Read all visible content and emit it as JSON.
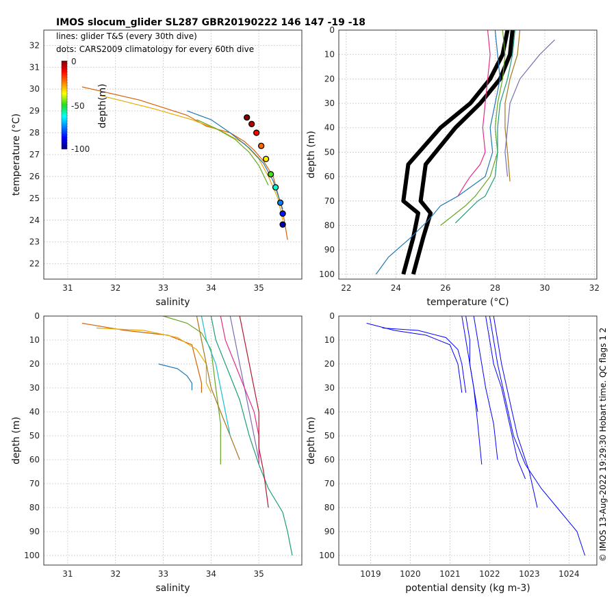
{
  "figure": {
    "title": "IMOS slocum_glider SL287 GBR20190222 146  147  -19  -18",
    "legend_lines": "lines: glider T&S (every 30th dive)",
    "legend_dots": "dots: CARS2009 climatology for every 60th dive",
    "footer": "© IMOS 13-Aug-2022 19:29:30 Hobart time. QC flags 1  2",
    "colors": {
      "density": "#0000ff",
      "climatology": "#000000",
      "frame": "#333333"
    }
  },
  "colorbar": {
    "label": "depth(m)",
    "ticks": [
      "0",
      "-50",
      "-100"
    ],
    "range": [
      -100,
      0
    ]
  },
  "chart_data": [
    {
      "id": "ts",
      "type": "scatter",
      "title": "",
      "xlabel": "salinity",
      "ylabel": "temperature (°C)",
      "xlim": [
        30.5,
        35.9
      ],
      "ylim": [
        21.3,
        32.7
      ],
      "xticks": [
        31,
        32,
        33,
        34,
        35
      ],
      "yticks": [
        22,
        23,
        24,
        25,
        26,
        27,
        28,
        29,
        30,
        31,
        32
      ],
      "grid": true,
      "series": [
        {
          "name": "glider T&S",
          "x": [
            31.3,
            32.5,
            33.5,
            33.9,
            34.4,
            34.7,
            34.9,
            35.1,
            35.3,
            35.4,
            35.5,
            35.6
          ],
          "y": [
            30.1,
            29.5,
            28.8,
            28.3,
            28.0,
            27.6,
            27.2,
            26.7,
            26.0,
            25.2,
            24.4,
            23.1
          ]
        },
        {
          "name": "glider T&S",
          "x": [
            31.7,
            32.8,
            33.6,
            34.2,
            34.7,
            35.0,
            35.2,
            35.4,
            35.5
          ],
          "y": [
            29.7,
            29.1,
            28.6,
            28.1,
            27.5,
            26.8,
            26.0,
            25.0,
            24.0
          ]
        },
        {
          "name": "glider T&S",
          "x": [
            33.5,
            34.0,
            34.4,
            34.8,
            35.1,
            35.3,
            35.5
          ],
          "y": [
            29.0,
            28.6,
            28.0,
            27.3,
            26.6,
            25.8,
            24.5
          ]
        },
        {
          "name": "glider T&S",
          "x": [
            33.7,
            34.1,
            34.5,
            34.8,
            35.0,
            35.2
          ],
          "y": [
            28.6,
            28.2,
            27.7,
            27.1,
            26.5,
            25.6
          ]
        },
        {
          "name": "CARS2009 climatology",
          "x": [
            34.75,
            34.85,
            34.95,
            35.05,
            35.15,
            35.25,
            35.35,
            35.45,
            35.5,
            35.5
          ],
          "y": [
            28.7,
            28.4,
            28.0,
            27.4,
            26.8,
            26.1,
            25.5,
            24.8,
            24.3,
            23.8
          ],
          "depth": [
            0,
            -5,
            -12,
            -22,
            -35,
            -48,
            -60,
            -75,
            -85,
            -95
          ]
        }
      ]
    },
    {
      "id": "temp_depth",
      "type": "line",
      "title": "",
      "xlabel": "temperature (°C)",
      "ylabel": "depth (m)",
      "xlim": [
        21.7,
        32.1
      ],
      "ylim": [
        0,
        102
      ],
      "xticks": [
        22,
        24,
        26,
        28,
        30,
        32
      ],
      "yticks": [
        0,
        10,
        20,
        30,
        40,
        50,
        60,
        70,
        80,
        90,
        100
      ],
      "grid": true,
      "series": [
        {
          "name": "climatology",
          "x": [
            28.5,
            28.3,
            27.8,
            27.0,
            25.8,
            24.5,
            24.3,
            24.9,
            24.7,
            24.3
          ],
          "y": [
            0,
            10,
            20,
            30,
            40,
            55,
            70,
            75,
            85,
            100
          ]
        },
        {
          "name": "climatology",
          "x": [
            28.7,
            28.6,
            28.2,
            27.4,
            26.4,
            25.2,
            25.0,
            25.4,
            25.1,
            24.7
          ],
          "y": [
            0,
            10,
            20,
            30,
            40,
            55,
            70,
            75,
            85,
            100
          ]
        },
        {
          "name": "glider",
          "x": [
            28.0,
            28.1,
            28.2,
            28.0,
            27.8,
            27.9,
            27.6,
            26.5,
            25.8,
            25.3,
            24.6,
            23.7,
            23.2
          ],
          "y": [
            0,
            10,
            20,
            30,
            40,
            50,
            60,
            68,
            72,
            78,
            85,
            93,
            100
          ]
        },
        {
          "name": "glider",
          "x": [
            28.3,
            28.4,
            28.3,
            28.1,
            28.0,
            28.1,
            27.8,
            27.2,
            26.8,
            25.8
          ],
          "y": [
            0,
            10,
            20,
            30,
            40,
            50,
            60,
            68,
            72,
            80
          ]
        },
        {
          "name": "glider",
          "x": [
            29.0,
            28.9,
            28.6,
            28.4,
            28.4,
            28.5,
            28.6
          ],
          "y": [
            0,
            10,
            20,
            30,
            40,
            50,
            62
          ]
        },
        {
          "name": "glider",
          "x": [
            30.4,
            29.8,
            29.0,
            28.6,
            28.5,
            28.4,
            28.5
          ],
          "y": [
            4,
            10,
            20,
            30,
            40,
            50,
            60
          ]
        },
        {
          "name": "glider",
          "x": [
            27.7,
            27.8,
            27.7,
            27.6,
            27.5,
            27.6,
            27.4,
            27.0,
            26.8,
            26.5
          ],
          "y": [
            0,
            10,
            20,
            30,
            40,
            50,
            55,
            60,
            63,
            68
          ]
        },
        {
          "name": "glider",
          "x": [
            28.8,
            28.7,
            28.5,
            28.2,
            28.1,
            28.1,
            28.0,
            27.6,
            27.3,
            26.4
          ],
          "y": [
            0,
            10,
            20,
            30,
            40,
            50,
            60,
            68,
            70,
            79
          ]
        }
      ]
    },
    {
      "id": "sal_depth",
      "type": "line",
      "title": "",
      "xlabel": "salinity",
      "ylabel": "depth (m)",
      "xlim": [
        30.5,
        35.9
      ],
      "ylim": [
        0,
        104
      ],
      "xticks": [
        31,
        32,
        33,
        34,
        35
      ],
      "yticks": [
        0,
        10,
        20,
        30,
        40,
        50,
        60,
        70,
        80,
        90,
        100
      ],
      "grid": true,
      "series": [
        {
          "name": "glider",
          "x": [
            31.3,
            32.2,
            33.1,
            33.6,
            33.7,
            33.8,
            33.8
          ],
          "y": [
            3,
            6,
            8,
            12,
            20,
            28,
            32
          ]
        },
        {
          "name": "glider",
          "x": [
            31.6,
            32.6,
            33.3,
            33.7,
            33.9,
            33.9,
            34.0
          ],
          "y": [
            5,
            6,
            9,
            14,
            20,
            28,
            32
          ]
        },
        {
          "name": "glider",
          "x": [
            32.9,
            33.3,
            33.5,
            33.6,
            33.6
          ],
          "y": [
            20,
            22,
            25,
            28,
            31
          ]
        },
        {
          "name": "glider",
          "x": [
            33.0,
            33.5,
            33.8,
            34.0,
            34.1,
            34.2,
            34.2
          ],
          "y": [
            0,
            3,
            7,
            14,
            30,
            45,
            62
          ]
        },
        {
          "name": "glider",
          "x": [
            33.7,
            33.8,
            33.9,
            34.0,
            34.2,
            34.4,
            34.6
          ],
          "y": [
            0,
            10,
            20,
            30,
            40,
            50,
            60
          ]
        },
        {
          "name": "glider",
          "x": [
            34.4,
            34.5,
            34.6,
            34.7,
            34.8,
            34.9,
            35.0
          ],
          "y": [
            0,
            10,
            20,
            30,
            40,
            50,
            60
          ]
        },
        {
          "name": "glider",
          "x": [
            34.2,
            34.3,
            34.5,
            34.7,
            34.9,
            35.0,
            35.0
          ],
          "y": [
            0,
            10,
            20,
            30,
            40,
            50,
            62
          ]
        },
        {
          "name": "glider",
          "x": [
            34.0,
            34.1,
            34.3,
            34.6,
            34.8,
            35.0,
            35.2,
            35.5,
            35.6,
            35.7
          ],
          "y": [
            0,
            10,
            20,
            35,
            50,
            62,
            72,
            82,
            90,
            100
          ]
        },
        {
          "name": "glider",
          "x": [
            34.6,
            34.7,
            34.8,
            34.9,
            35.0,
            35.0,
            35.1,
            35.2
          ],
          "y": [
            0,
            10,
            20,
            30,
            40,
            55,
            65,
            80
          ]
        },
        {
          "name": "glider",
          "x": [
            33.8,
            33.9,
            34.1,
            34.2,
            34.3,
            34.4
          ],
          "y": [
            0,
            10,
            20,
            30,
            40,
            50
          ]
        }
      ]
    },
    {
      "id": "dens_depth",
      "type": "line",
      "title": "",
      "xlabel": "potential density (kg m-3)",
      "ylabel": "depth (m)",
      "xlim": [
        1018.2,
        1024.7
      ],
      "ylim": [
        0,
        104
      ],
      "xticks": [
        1019,
        1020,
        1021,
        1022,
        1023,
        1024
      ],
      "yticks": [
        0,
        10,
        20,
        30,
        40,
        50,
        60,
        70,
        80,
        90,
        100
      ],
      "grid": true,
      "series": [
        {
          "name": "density",
          "x": [
            1018.9,
            1019.6,
            1020.4,
            1021.0,
            1021.2,
            1021.3
          ],
          "y": [
            3,
            6,
            8,
            12,
            20,
            32
          ]
        },
        {
          "name": "density",
          "x": [
            1019.3,
            1020.2,
            1020.9,
            1021.2,
            1021.3,
            1021.4
          ],
          "y": [
            5,
            6,
            9,
            14,
            20,
            32
          ]
        },
        {
          "name": "density",
          "x": [
            1021.4,
            1021.5,
            1021.5,
            1021.6,
            1021.7,
            1021.8
          ],
          "y": [
            0,
            10,
            20,
            30,
            45,
            62
          ]
        },
        {
          "name": "density",
          "x": [
            1021.6,
            1021.7,
            1021.8,
            1021.9,
            1022.1,
            1022.2
          ],
          "y": [
            0,
            10,
            20,
            30,
            45,
            60
          ]
        },
        {
          "name": "density",
          "x": [
            1022.0,
            1022.1,
            1022.2,
            1022.4,
            1022.6,
            1022.9,
            1023.3,
            1023.8,
            1024.2,
            1024.4
          ],
          "y": [
            0,
            10,
            20,
            35,
            50,
            62,
            72,
            82,
            90,
            100
          ]
        },
        {
          "name": "density",
          "x": [
            1022.1,
            1022.2,
            1022.3,
            1022.5,
            1022.7,
            1023.0,
            1023.2
          ],
          "y": [
            0,
            10,
            20,
            35,
            50,
            65,
            80
          ]
        },
        {
          "name": "density",
          "x": [
            1021.9,
            1022.0,
            1022.1,
            1022.3,
            1022.5,
            1022.7,
            1022.9
          ],
          "y": [
            0,
            10,
            20,
            30,
            45,
            60,
            68
          ]
        },
        {
          "name": "density",
          "x": [
            1021.3,
            1021.4,
            1021.5,
            1021.6,
            1021.7
          ],
          "y": [
            0,
            10,
            20,
            30,
            40
          ]
        }
      ]
    }
  ]
}
